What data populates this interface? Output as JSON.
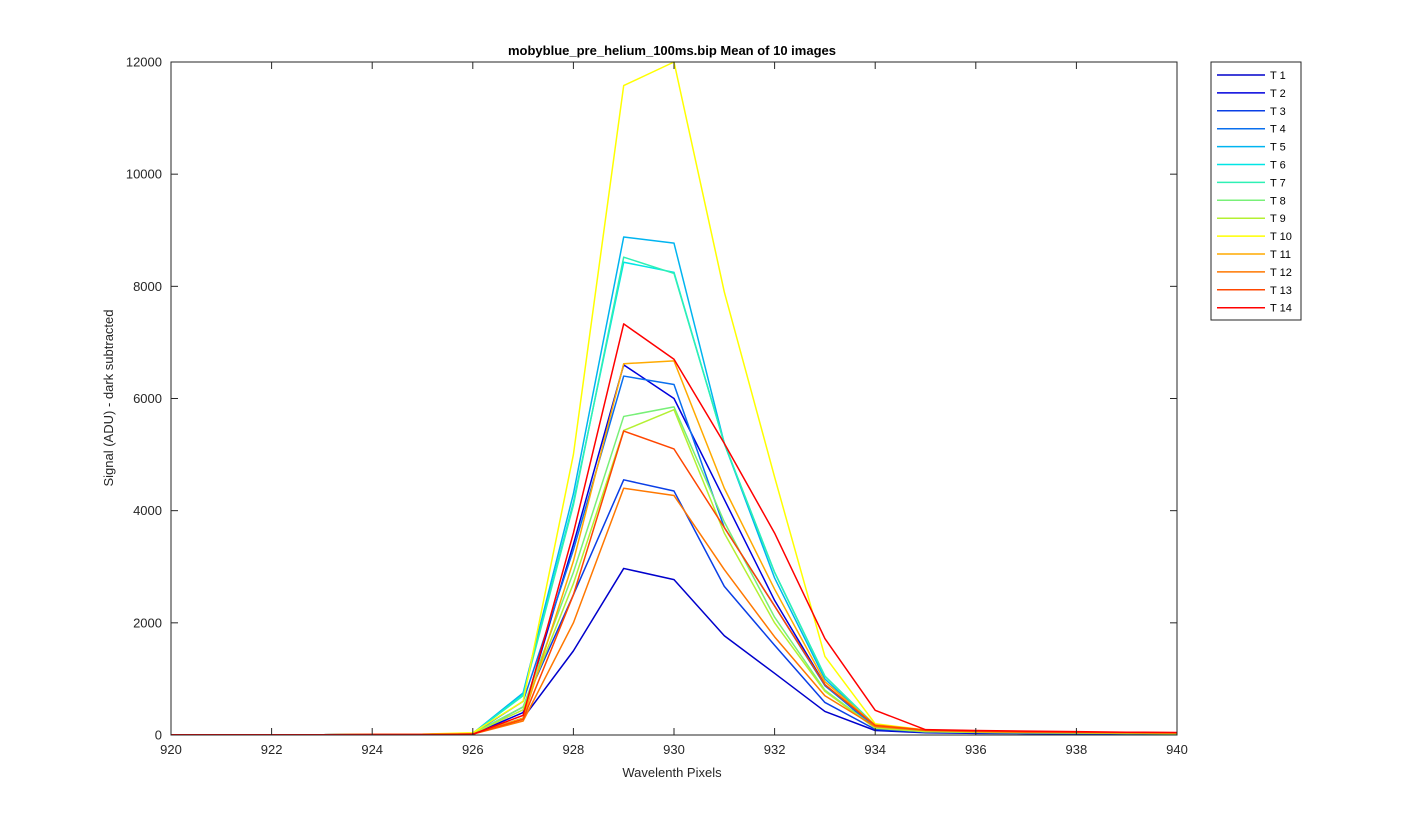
{
  "chart_data": {
    "type": "line",
    "title": "mobyblue_pre_helium_100ms.bip  Mean of 10 images",
    "xlabel": "Wavelenth Pixels",
    "ylabel": "Signal (ADU) - dark subtracted",
    "xlim": [
      920,
      940
    ],
    "ylim": [
      0,
      12000
    ],
    "xticks": [
      920,
      922,
      924,
      926,
      928,
      930,
      932,
      934,
      936,
      938,
      940
    ],
    "yticks": [
      0,
      2000,
      4000,
      6000,
      8000,
      10000,
      12000
    ],
    "grid": false,
    "legend_position": "outside-top-right",
    "x": [
      920,
      921,
      922,
      923,
      924,
      925,
      926,
      927,
      928,
      929,
      930,
      931,
      932,
      933,
      934,
      935,
      936,
      937,
      938,
      939,
      940
    ],
    "series": [
      {
        "name": "T 1",
        "color": "#0000cc",
        "values": [
          5,
          5,
          5,
          5,
          8,
          10,
          15,
          300,
          1500,
          2970,
          2770,
          1770,
          1100,
          420,
          80,
          40,
          30,
          25,
          20,
          15,
          10
        ]
      },
      {
        "name": "T 2",
        "color": "#0000dd",
        "values": [
          5,
          5,
          5,
          5,
          8,
          10,
          15,
          400,
          3400,
          6600,
          6000,
          4200,
          2400,
          900,
          120,
          60,
          45,
          35,
          30,
          25,
          20
        ]
      },
      {
        "name": "T 3",
        "color": "#0a3fe6",
        "values": [
          5,
          5,
          5,
          5,
          8,
          10,
          20,
          500,
          2500,
          4550,
          4350,
          2650,
          1600,
          580,
          100,
          50,
          40,
          30,
          25,
          20,
          15
        ]
      },
      {
        "name": "T 4",
        "color": "#0a6fee",
        "values": [
          5,
          5,
          5,
          5,
          8,
          10,
          25,
          600,
          3300,
          6400,
          6250,
          3700,
          2300,
          880,
          140,
          70,
          50,
          40,
          35,
          30,
          25
        ]
      },
      {
        "name": "T 5",
        "color": "#00b4f0",
        "values": [
          5,
          5,
          5,
          5,
          10,
          12,
          30,
          750,
          4300,
          8880,
          8770,
          5200,
          2800,
          1000,
          160,
          80,
          60,
          50,
          40,
          35,
          30
        ]
      },
      {
        "name": "T 6",
        "color": "#00e6e6",
        "values": [
          5,
          5,
          5,
          5,
          10,
          12,
          30,
          720,
          4150,
          8430,
          8250,
          5200,
          2900,
          1050,
          170,
          80,
          60,
          50,
          40,
          35,
          30
        ]
      },
      {
        "name": "T 7",
        "color": "#2ef0b4",
        "values": [
          5,
          5,
          5,
          5,
          10,
          12,
          30,
          700,
          4100,
          8520,
          8230,
          5200,
          2900,
          1050,
          170,
          80,
          60,
          50,
          40,
          35,
          30
        ]
      },
      {
        "name": "T 8",
        "color": "#78f078",
        "values": [
          5,
          5,
          5,
          5,
          8,
          10,
          25,
          500,
          2900,
          5680,
          5850,
          3800,
          2100,
          800,
          130,
          60,
          50,
          40,
          35,
          30,
          25
        ]
      },
      {
        "name": "T 9",
        "color": "#b4f032",
        "values": [
          5,
          5,
          5,
          5,
          8,
          10,
          25,
          450,
          2700,
          5430,
          5800,
          3600,
          2000,
          780,
          120,
          60,
          50,
          40,
          35,
          30,
          25
        ]
      },
      {
        "name": "T 10",
        "color": "#ffff00",
        "values": [
          5,
          5,
          5,
          5,
          10,
          15,
          40,
          600,
          5000,
          11580,
          12000,
          7900,
          4600,
          1400,
          200,
          90,
          70,
          60,
          50,
          40,
          35
        ]
      },
      {
        "name": "T 11",
        "color": "#ffaa00",
        "values": [
          5,
          5,
          5,
          5,
          8,
          10,
          20,
          300,
          3100,
          6620,
          6670,
          4400,
          2600,
          950,
          180,
          90,
          70,
          60,
          50,
          45,
          40
        ]
      },
      {
        "name": "T 12",
        "color": "#ff7800",
        "values": [
          5,
          5,
          5,
          5,
          8,
          10,
          15,
          250,
          2000,
          4400,
          4270,
          2950,
          1750,
          700,
          150,
          80,
          60,
          50,
          45,
          40,
          35
        ]
      },
      {
        "name": "T 13",
        "color": "#ff4600",
        "values": [
          5,
          5,
          5,
          5,
          8,
          10,
          15,
          280,
          2500,
          5420,
          5100,
          3700,
          2300,
          900,
          170,
          90,
          70,
          60,
          50,
          45,
          40
        ]
      },
      {
        "name": "T 14",
        "color": "#ff0000",
        "values": [
          5,
          5,
          5,
          5,
          8,
          10,
          15,
          350,
          3600,
          7330,
          6700,
          5200,
          3600,
          1720,
          440,
          95,
          80,
          70,
          60,
          50,
          45
        ]
      }
    ]
  }
}
